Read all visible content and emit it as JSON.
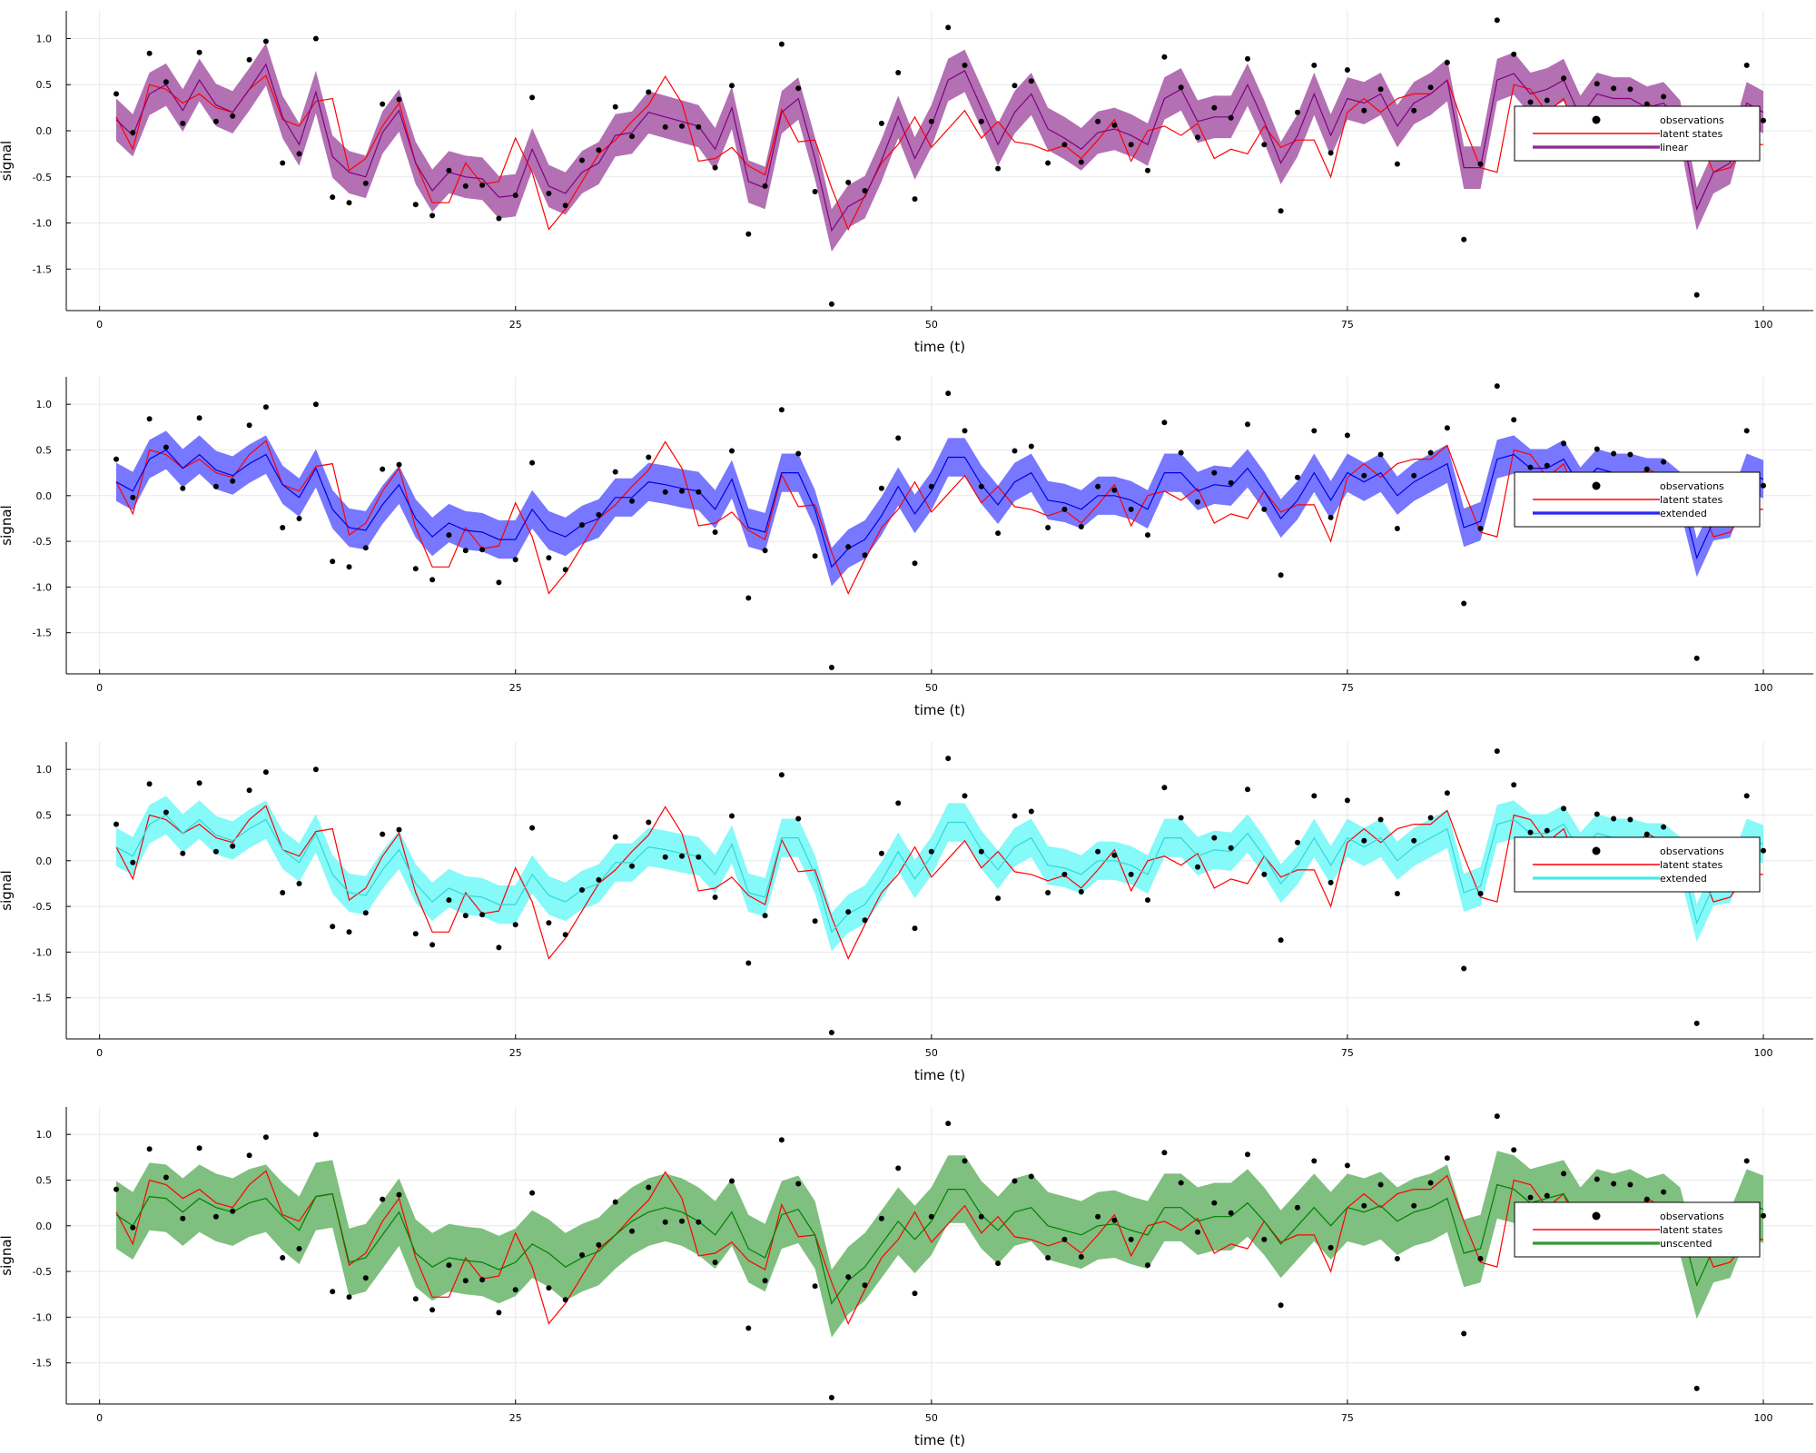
{
  "chart_data": [
    {
      "type": "line",
      "xlabel": "time (t)",
      "ylabel": "signal",
      "xlim": [
        -2,
        103
      ],
      "ylim": [
        -1.95,
        1.3
      ],
      "xticks": [
        0,
        25,
        50,
        75,
        100
      ],
      "xtick_labels": [
        "0",
        "25",
        "50",
        "75",
        "100"
      ],
      "yticks": [
        1.0,
        0.5,
        0.0,
        -0.5,
        -1.0,
        -1.5
      ],
      "ytick_labels": [
        "1.0",
        "0.5",
        "0.0",
        "-0.5",
        "-1.0",
        "-1.5"
      ],
      "grid": true,
      "legend": "right",
      "legend_entries": [
        "observations",
        "latent states",
        "linear"
      ],
      "filter_color": "#800080",
      "band_color": "#b370b3",
      "band_opacity": 1.0,
      "band_halfwidth": 0.23
    },
    {
      "type": "line",
      "xlabel": "time (t)",
      "ylabel": "signal",
      "xlim": [
        -2,
        103
      ],
      "ylim": [
        -1.95,
        1.3
      ],
      "xticks": [
        0,
        25,
        50,
        75,
        100
      ],
      "xtick_labels": [
        "0",
        "25",
        "50",
        "75",
        "100"
      ],
      "yticks": [
        1.0,
        0.5,
        0.0,
        -0.5,
        -1.0,
        -1.5
      ],
      "ytick_labels": [
        "1.0",
        "0.5",
        "0.0",
        "-0.5",
        "-1.0",
        "-1.5"
      ],
      "grid": true,
      "legend": "right",
      "legend_entries": [
        "observations",
        "latent states",
        "extended"
      ],
      "filter_color": "#0000e0",
      "band_color": "#7070ff",
      "band_opacity": 0.95,
      "band_halfwidth": 0.21
    },
    {
      "type": "line",
      "xlabel": "time (t)",
      "ylabel": "signal",
      "xlim": [
        -2,
        103
      ],
      "ylim": [
        -1.95,
        1.3
      ],
      "xticks": [
        0,
        25,
        50,
        75,
        100
      ],
      "xtick_labels": [
        "0",
        "25",
        "50",
        "75",
        "100"
      ],
      "yticks": [
        1.0,
        0.5,
        0.0,
        -0.5,
        -1.0,
        -1.5
      ],
      "ytick_labels": [
        "1.0",
        "0.5",
        "0.0",
        "-0.5",
        "-1.0",
        "-1.5"
      ],
      "grid": true,
      "legend": "right",
      "legend_entries": [
        "observations",
        "latent states",
        "extended"
      ],
      "filter_color": "#30d8d8",
      "band_color": "#7ff9f9",
      "band_opacity": 0.95,
      "band_halfwidth": 0.21
    },
    {
      "type": "line",
      "xlabel": "time (t)",
      "ylabel": "signal",
      "xlim": [
        -2,
        103
      ],
      "ylim": [
        -1.95,
        1.3
      ],
      "xticks": [
        0,
        25,
        50,
        75,
        100
      ],
      "xtick_labels": [
        "0",
        "25",
        "50",
        "75",
        "100"
      ],
      "yticks": [
        1.0,
        0.5,
        0.0,
        -0.5,
        -1.0,
        -1.5
      ],
      "ytick_labels": [
        "1.0",
        "0.5",
        "0.0",
        "-0.5",
        "-1.0",
        "-1.5"
      ],
      "grid": true,
      "legend": "right",
      "legend_entries": [
        "observations",
        "latent states",
        "unscented"
      ],
      "filter_color": "#008000",
      "band_color": "#7fbf7f",
      "band_opacity": 1.0,
      "band_halfwidth": 0.37
    }
  ],
  "shared_data": {
    "x": [
      1,
      2,
      3,
      4,
      5,
      6,
      7,
      8,
      9,
      10,
      11,
      12,
      13,
      14,
      15,
      16,
      17,
      18,
      19,
      20,
      21,
      22,
      23,
      24,
      25,
      26,
      27,
      28,
      29,
      30,
      31,
      32,
      33,
      34,
      35,
      36,
      37,
      38,
      39,
      40,
      41,
      42,
      43,
      44,
      45,
      46,
      47,
      48,
      49,
      50,
      51,
      52,
      53,
      54,
      55,
      56,
      57,
      58,
      59,
      60,
      61,
      62,
      63,
      64,
      65,
      66,
      67,
      68,
      69,
      70,
      71,
      72,
      73,
      74,
      75,
      76,
      77,
      78,
      79,
      80,
      81,
      82,
      83,
      84,
      85,
      86,
      87,
      88,
      89,
      90,
      91,
      92,
      93,
      94,
      95,
      96,
      97,
      98,
      99,
      100
    ],
    "observations": [
      0.4,
      -0.02,
      0.84,
      0.53,
      0.08,
      0.85,
      0.1,
      0.16,
      0.77,
      0.97,
      -0.35,
      -0.25,
      1.0,
      -0.72,
      -0.78,
      -0.57,
      0.29,
      0.34,
      -0.8,
      -0.92,
      -0.43,
      -0.6,
      -0.59,
      -0.95,
      -0.7,
      0.36,
      -0.68,
      -0.81,
      -0.32,
      -0.21,
      0.26,
      -0.06,
      0.42,
      0.04,
      0.05,
      0.04,
      -0.4,
      0.49,
      -1.12,
      -0.6,
      0.94,
      0.46,
      -0.66,
      -1.88,
      -0.56,
      -0.65,
      0.08,
      0.63,
      -0.74,
      0.1,
      1.12,
      0.71,
      0.1,
      -0.41,
      0.49,
      0.54,
      -0.35,
      -0.15,
      -0.34,
      0.1,
      0.06,
      -0.15,
      -0.43,
      0.8,
      0.47,
      -0.07,
      0.25,
      0.14,
      0.78,
      -0.15,
      -0.87,
      0.2,
      0.71,
      -0.24,
      0.66,
      0.22,
      0.45,
      -0.36,
      0.22,
      0.47,
      0.74,
      -1.18,
      -0.36,
      1.2,
      0.83,
      0.31,
      0.33,
      0.57,
      -0.12,
      0.51,
      0.46,
      0.45,
      0.29,
      0.37,
      0.0,
      -1.78,
      0.0,
      0.0,
      0.71,
      0.11
    ],
    "latent_states": [
      0.15,
      -0.2,
      0.5,
      0.45,
      0.3,
      0.4,
      0.25,
      0.2,
      0.45,
      0.6,
      0.12,
      0.05,
      0.32,
      0.35,
      -0.43,
      -0.3,
      0.05,
      0.3,
      -0.35,
      -0.78,
      -0.78,
      -0.35,
      -0.58,
      -0.55,
      -0.08,
      -0.45,
      -1.07,
      -0.85,
      -0.55,
      -0.25,
      -0.1,
      0.1,
      0.28,
      0.59,
      0.3,
      -0.33,
      -0.3,
      -0.18,
      -0.38,
      -0.48,
      0.23,
      -0.12,
      -0.1,
      -0.62,
      -1.07,
      -0.7,
      -0.35,
      -0.15,
      0.15,
      -0.18,
      0.02,
      0.22,
      -0.08,
      0.1,
      -0.12,
      -0.15,
      -0.22,
      -0.16,
      -0.3,
      -0.1,
      0.12,
      -0.33,
      0.0,
      0.05,
      -0.05,
      0.08,
      -0.3,
      -0.2,
      -0.25,
      0.05,
      -0.18,
      -0.1,
      -0.1,
      -0.5,
      0.2,
      0.35,
      0.2,
      0.35,
      0.4,
      0.4,
      0.55,
      0.05,
      -0.4,
      -0.45,
      0.5,
      0.45,
      0.2,
      0.35,
      -0.12,
      0.25,
      -0.05,
      0.1,
      0.3,
      0.2,
      -0.05,
      0.0,
      -0.45,
      -0.4,
      -0.15,
      -0.15
    ],
    "filter_linear": [
      0.12,
      -0.05,
      0.4,
      0.5,
      0.22,
      0.55,
      0.28,
      0.2,
      0.45,
      0.72,
      0.15,
      -0.15,
      0.42,
      -0.28,
      -0.45,
      -0.5,
      -0.02,
      0.22,
      -0.35,
      -0.65,
      -0.45,
      -0.5,
      -0.52,
      -0.72,
      -0.7,
      -0.2,
      -0.6,
      -0.68,
      -0.45,
      -0.35,
      -0.05,
      -0.02,
      0.2,
      0.15,
      0.1,
      0.05,
      -0.2,
      0.25,
      -0.55,
      -0.62,
      0.2,
      0.35,
      -0.3,
      -1.08,
      -0.82,
      -0.72,
      -0.32,
      0.15,
      -0.3,
      0.05,
      0.55,
      0.65,
      0.25,
      -0.15,
      0.2,
      0.4,
      0.02,
      -0.08,
      -0.2,
      -0.02,
      0.02,
      -0.05,
      -0.15,
      0.35,
      0.45,
      0.1,
      0.15,
      0.15,
      0.5,
      0.1,
      -0.35,
      -0.05,
      0.4,
      -0.05,
      0.35,
      0.3,
      0.4,
      0.05,
      0.3,
      0.4,
      0.55,
      -0.4,
      -0.4,
      0.55,
      0.62,
      0.4,
      0.45,
      0.55,
      0.15,
      0.4,
      0.35,
      0.35,
      0.25,
      0.3,
      0.1,
      -0.85,
      -0.45,
      -0.35,
      0.3,
      0.2
    ],
    "filter_extended": [
      0.15,
      0.05,
      0.4,
      0.5,
      0.3,
      0.45,
      0.28,
      0.22,
      0.35,
      0.45,
      0.12,
      -0.02,
      0.3,
      -0.15,
      -0.35,
      -0.38,
      -0.1,
      0.12,
      -0.25,
      -0.45,
      -0.3,
      -0.38,
      -0.4,
      -0.48,
      -0.48,
      -0.15,
      -0.38,
      -0.45,
      -0.32,
      -0.25,
      -0.02,
      -0.02,
      0.15,
      0.12,
      0.08,
      0.05,
      -0.15,
      0.18,
      -0.35,
      -0.4,
      0.25,
      0.25,
      -0.15,
      -0.78,
      -0.58,
      -0.48,
      -0.22,
      0.1,
      -0.2,
      0.05,
      0.42,
      0.42,
      0.12,
      -0.1,
      0.15,
      0.25,
      -0.05,
      -0.08,
      -0.15,
      0.0,
      0.0,
      -0.05,
      -0.15,
      0.25,
      0.25,
      0.05,
      0.12,
      0.1,
      0.3,
      0.05,
      -0.25,
      -0.05,
      0.25,
      -0.05,
      0.25,
      0.15,
      0.25,
      0.0,
      0.15,
      0.25,
      0.35,
      -0.35,
      -0.28,
      0.4,
      0.45,
      0.3,
      0.3,
      0.4,
      0.1,
      0.3,
      0.25,
      0.25,
      0.2,
      0.2,
      0.05,
      -0.68,
      -0.28,
      -0.25,
      0.25,
      0.18
    ],
    "filter_unscented": [
      0.12,
      0.0,
      0.32,
      0.3,
      0.15,
      0.3,
      0.2,
      0.15,
      0.25,
      0.3,
      0.1,
      -0.05,
      0.32,
      0.35,
      -0.4,
      -0.35,
      -0.1,
      0.15,
      -0.3,
      -0.45,
      -0.35,
      -0.38,
      -0.4,
      -0.48,
      -0.4,
      -0.2,
      -0.3,
      -0.45,
      -0.35,
      -0.28,
      -0.1,
      0.05,
      0.15,
      0.2,
      0.15,
      0.05,
      -0.1,
      0.15,
      -0.25,
      -0.35,
      0.12,
      0.18,
      -0.1,
      -0.85,
      -0.6,
      -0.45,
      -0.2,
      0.05,
      -0.15,
      0.05,
      0.4,
      0.4,
      0.12,
      -0.05,
      0.15,
      0.2,
      0.0,
      -0.05,
      -0.1,
      0.0,
      0.02,
      -0.05,
      -0.1,
      0.2,
      0.2,
      0.05,
      0.1,
      0.1,
      0.25,
      0.05,
      -0.2,
      0.0,
      0.2,
      0.0,
      0.2,
      0.15,
      0.22,
      0.05,
      0.15,
      0.2,
      0.3,
      -0.3,
      -0.25,
      0.45,
      0.4,
      0.25,
      0.3,
      0.35,
      0.05,
      0.25,
      0.2,
      0.25,
      0.15,
      0.2,
      0.05,
      -0.65,
      -0.25,
      -0.2,
      0.25,
      0.18
    ]
  }
}
